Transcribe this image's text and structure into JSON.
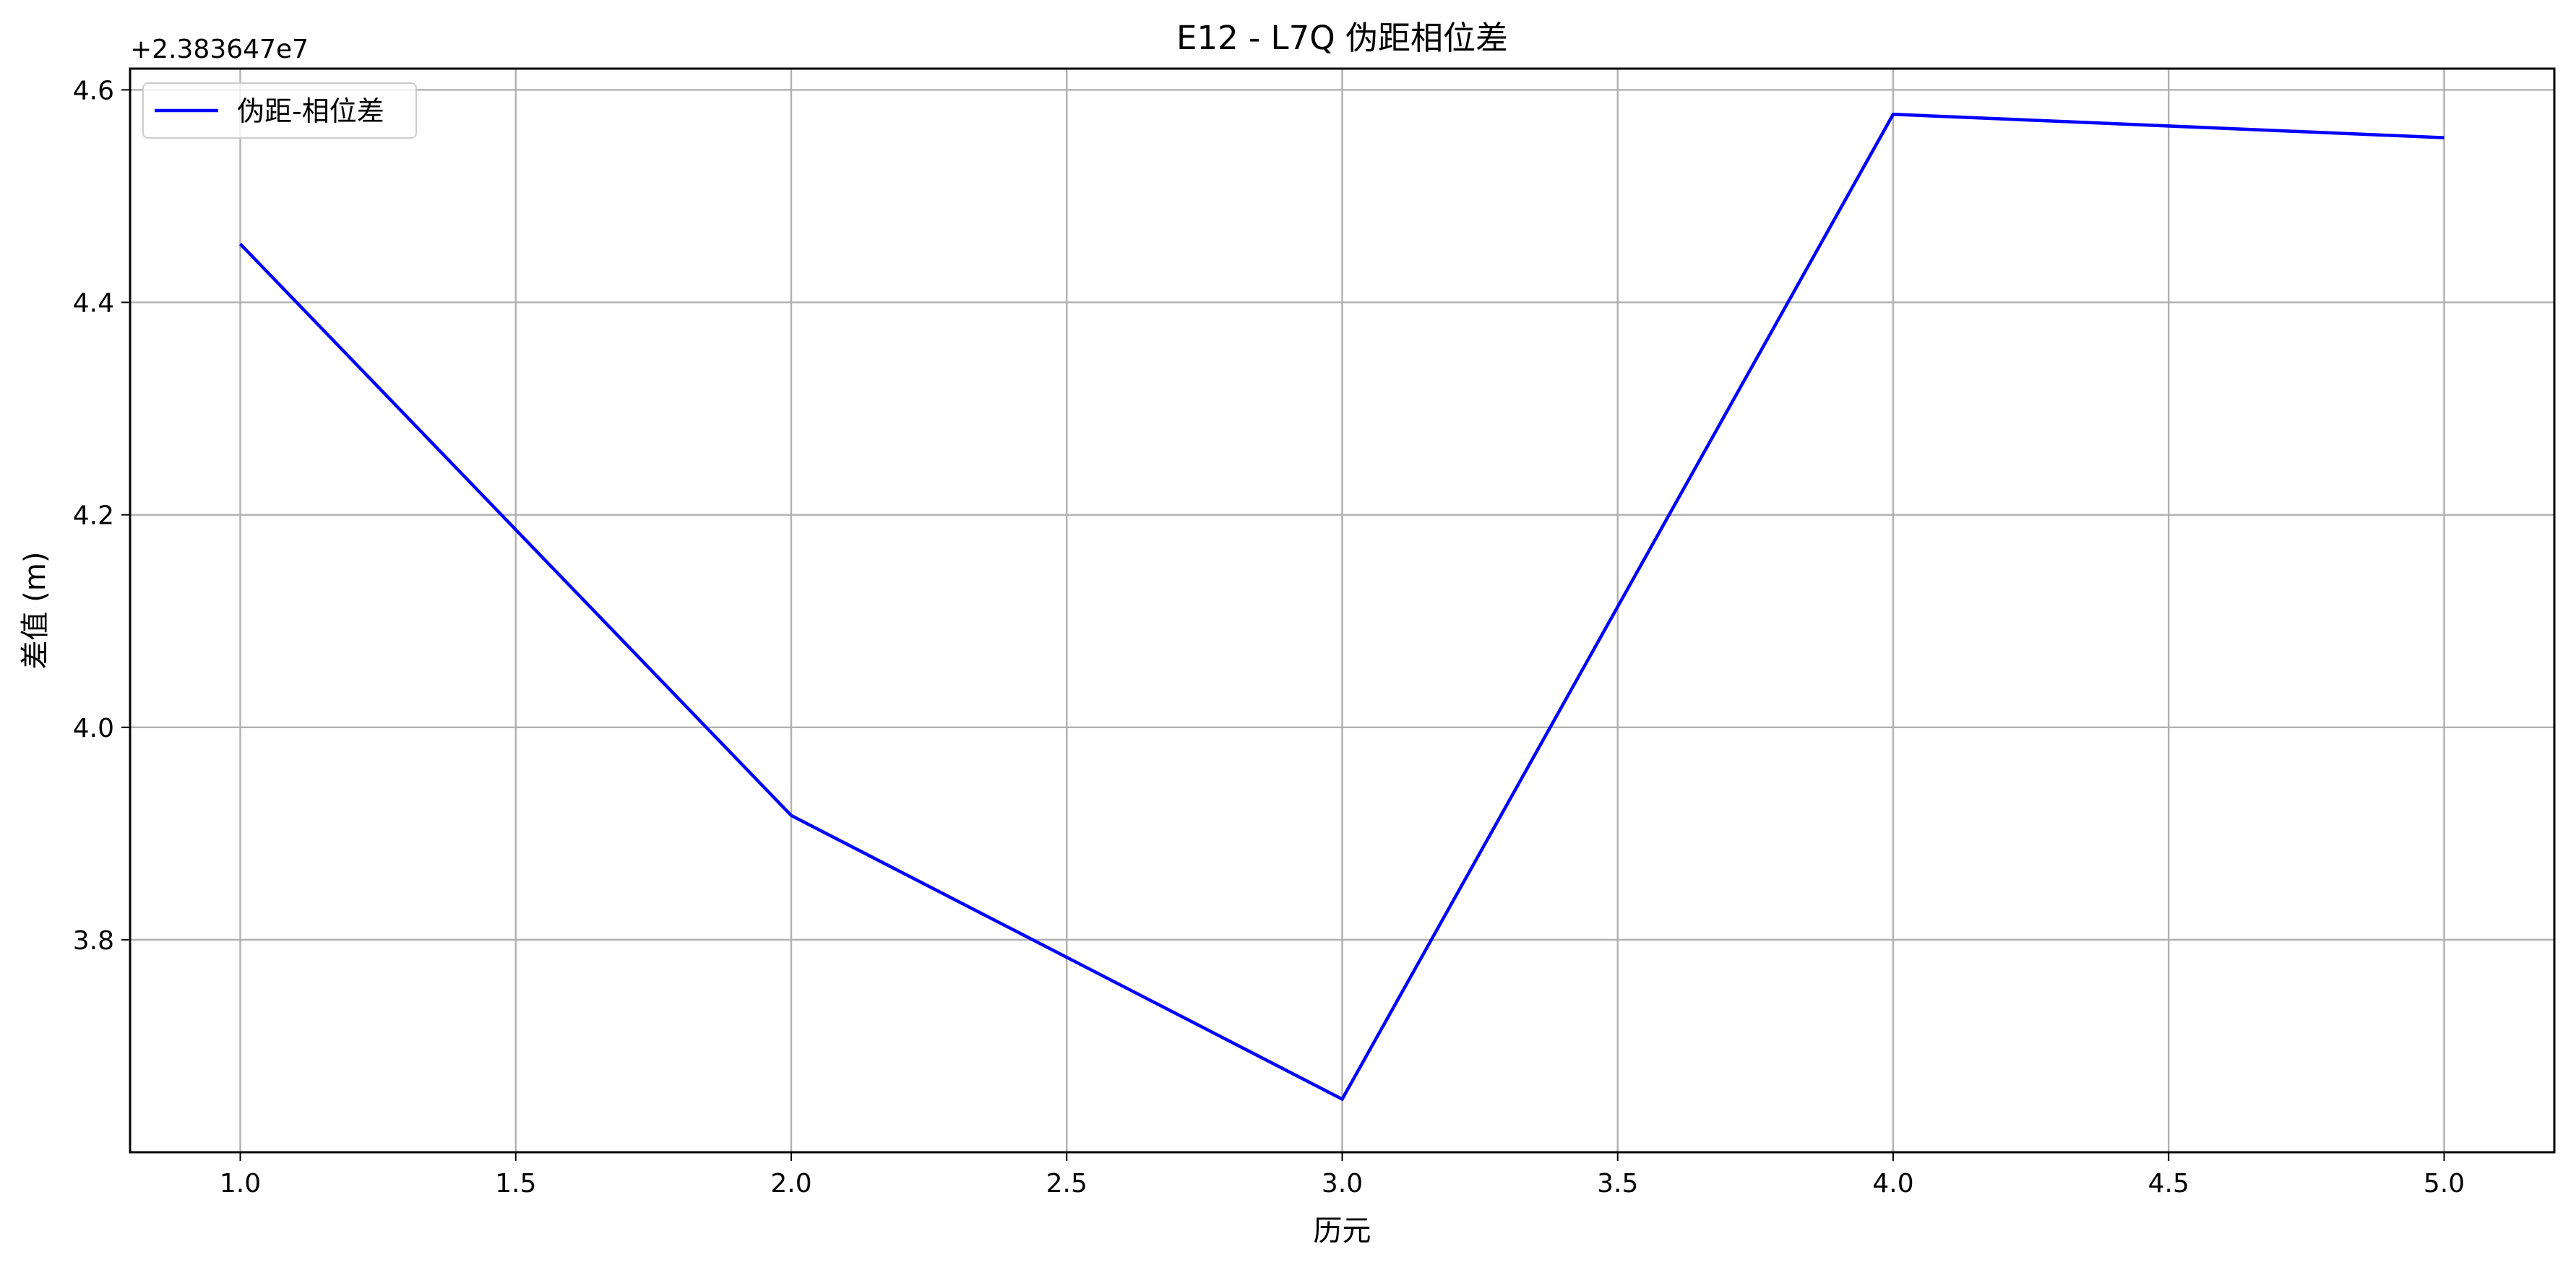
{
  "chart_data": {
    "type": "line",
    "title": "E12 - L7Q 伪距相位差",
    "xlabel": "历元",
    "ylabel": "差值 (m)",
    "y_offset_label": "+2.383647e7",
    "xlim": [
      0.8,
      5.2
    ],
    "ylim": [
      3.6,
      4.62
    ],
    "x_ticks": [
      1.0,
      1.5,
      2.0,
      2.5,
      3.0,
      3.5,
      4.0,
      4.5,
      5.0
    ],
    "x_tick_labels": [
      "1.0",
      "1.5",
      "2.0",
      "2.5",
      "3.0",
      "3.5",
      "4.0",
      "4.5",
      "5.0"
    ],
    "y_ticks": [
      3.8,
      4.0,
      4.2,
      4.4,
      4.6
    ],
    "y_tick_labels": [
      "3.8",
      "4.0",
      "4.2",
      "4.4",
      "4.6"
    ],
    "grid": true,
    "legend_position": "top-left",
    "series": [
      {
        "name": "伪距-相位差",
        "color": "#0000ff",
        "x": [
          1,
          2,
          3,
          4,
          5
        ],
        "y": [
          4.455,
          3.917,
          3.65,
          4.577,
          4.555
        ]
      }
    ]
  }
}
